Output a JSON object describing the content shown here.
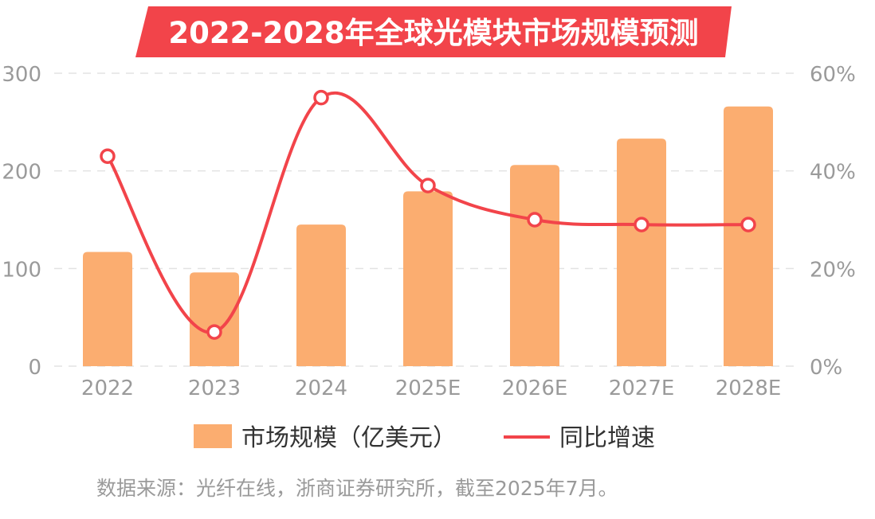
{
  "colors": {
    "bar": "#FBAD70",
    "line": "#F2444A",
    "title_bg": "#F2444A",
    "grid": "#e3e3e3"
  },
  "chart_data": {
    "type": "bar",
    "title": "2022-2028年全球光模块市场规模预测",
    "categories": [
      "2022",
      "2023",
      "2024",
      "2025E",
      "2026E",
      "2027E",
      "2028E"
    ],
    "series": [
      {
        "name": "市场规模（亿美元）",
        "type": "bar",
        "axis": "left",
        "values": [
          117,
          96,
          145,
          179,
          206,
          233,
          266
        ]
      },
      {
        "name": "同比增速",
        "type": "line",
        "axis": "right",
        "values": [
          43,
          7,
          55,
          37,
          30,
          29,
          29
        ]
      }
    ],
    "y_left": {
      "range": [
        0,
        300
      ],
      "ticks": [
        "0",
        "100",
        "200",
        "300"
      ]
    },
    "y_right": {
      "range": [
        0,
        60
      ],
      "ticks": [
        "0%",
        "20%",
        "40%",
        "60%"
      ]
    },
    "grid": true,
    "legend_position": "bottom",
    "source_note": "数据来源：光纤在线，浙商证券研究所，截至2025年7月。"
  }
}
